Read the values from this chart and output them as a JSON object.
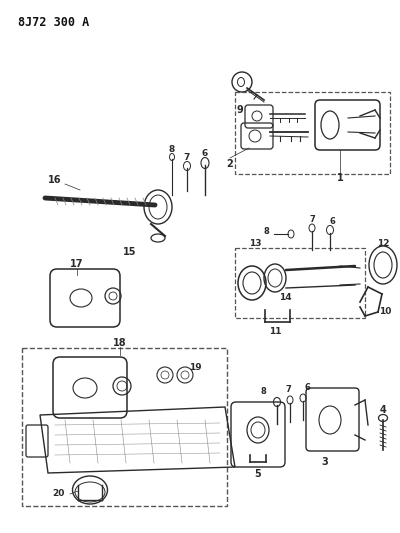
{
  "title": "8J72 300 A",
  "bg_color": "#ffffff",
  "lc": "#2a2a2a",
  "figsize": [
    4.0,
    5.33
  ],
  "dpi": 100
}
